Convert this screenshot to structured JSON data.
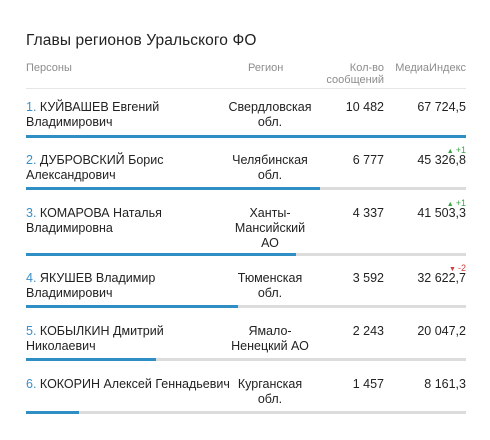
{
  "title": "Главы регионов Уральского ФО",
  "columns": {
    "persons": "Персоны",
    "region": "Регион",
    "count_line1": "Кол-во",
    "count_line2": "сообщений",
    "media": "МедиаИндекс"
  },
  "rows": [
    {
      "rank": "1.",
      "name_line1": "КУЙВАШЕВ Евгений",
      "name_line2": "Владимирович",
      "region_line1": "Свердловская",
      "region_line2": "обл.",
      "region_line3": "",
      "count": "10 482",
      "media": "67 724,5",
      "delta": "",
      "delta_dir": "",
      "share": 1.0
    },
    {
      "rank": "2.",
      "name_line1": "ДУБРОВСКИЙ Борис",
      "name_line2": "Александрович",
      "region_line1": "Челябинская",
      "region_line2": "обл.",
      "region_line3": "",
      "count": "6 777",
      "media": "45 326,8",
      "delta": "+1",
      "delta_dir": "up",
      "share": 0.669
    },
    {
      "rank": "3.",
      "name_line1": "КОМАРОВА Наталья",
      "name_line2": "Владимировна",
      "region_line1": "Ханты-",
      "region_line2": "Мансийский",
      "region_line3": "АО",
      "count": "4 337",
      "media": "41 503,3",
      "delta": "+1",
      "delta_dir": "up",
      "share": 0.613
    },
    {
      "rank": "4.",
      "name_line1": "ЯКУШЕВ Владимир",
      "name_line2": "Владимирович",
      "region_line1": "Тюменская",
      "region_line2": "обл.",
      "region_line3": "",
      "count": "3 592",
      "media": "32 622,7",
      "delta": "-2",
      "delta_dir": "down",
      "share": 0.482
    },
    {
      "rank": "5.",
      "name_line1": "КОБЫЛКИН Дмитрий",
      "name_line2": "Николаевич",
      "region_line1": "Ямало-",
      "region_line2": "Ненецкий АО",
      "region_line3": "",
      "count": "2 243",
      "media": "20 047,2",
      "delta": "",
      "delta_dir": "",
      "share": 0.296
    },
    {
      "rank": "6.",
      "name_line1": "КОКОРИН Алексей Геннадьевич",
      "name_line2": "",
      "region_line1": "Курганская",
      "region_line2": "обл.",
      "region_line3": "",
      "count": "1 457",
      "media": "8 161,3",
      "delta": "",
      "delta_dir": "",
      "share": 0.12
    }
  ],
  "colors": {
    "accent": "#2f8fc4",
    "track": "#dcdcdc",
    "up": "#3aa64a",
    "down": "#d23b3b"
  }
}
